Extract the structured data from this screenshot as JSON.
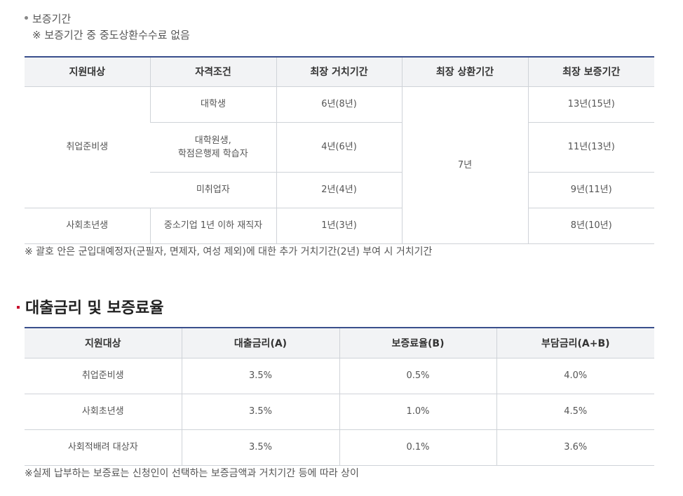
{
  "guarantee": {
    "bullet": "보증기간",
    "note": "※ 보증기간 중 중도상환수수료 없음"
  },
  "table1": {
    "headers": [
      "지원대상",
      "자격조건",
      "최장 거치기간",
      "최장 상환기간",
      "최장 보증기간"
    ],
    "group1": "취업준비생",
    "group2": "사회초년생",
    "repay": "7년",
    "rows": [
      {
        "cond": "대학생",
        "defer": "6년(8년)",
        "guarantee": "13년(15년)"
      },
      {
        "cond": "대학원생,\n학점은행제 학습자",
        "defer": "4년(6년)",
        "guarantee": "11년(13년)"
      },
      {
        "cond": "미취업자",
        "defer": "2년(4년)",
        "guarantee": "9년(11년)"
      },
      {
        "cond": "중소기업 1년 이하 재직자",
        "defer": "1년(3년)",
        "guarantee": "8년(10년)"
      }
    ],
    "footnote": "※ 괄호 안은 군입대예정자(군필자, 면제자, 여성 제외)에 대한 추가 거치기간(2년) 부여 시 거치기간"
  },
  "section": {
    "title": "대출금리 및 보증료율"
  },
  "table2": {
    "headers": [
      "지원대상",
      "대출금리(A)",
      "보증료율(B)",
      "부담금리(A+B)"
    ],
    "rows": [
      {
        "target": "취업준비생",
        "rate": "3.5%",
        "fee": "0.5%",
        "total": "4.0%"
      },
      {
        "target": "사회초년생",
        "rate": "3.5%",
        "fee": "1.0%",
        "total": "4.5%"
      },
      {
        "target": "사회적배려 대상자",
        "rate": "3.5%",
        "fee": "0.1%",
        "total": "3.6%"
      }
    ],
    "footnote": "※실제 납부하는 보증료는 신청인이 선택하는 보증금액과 거치기간 등에 따라 상이"
  }
}
